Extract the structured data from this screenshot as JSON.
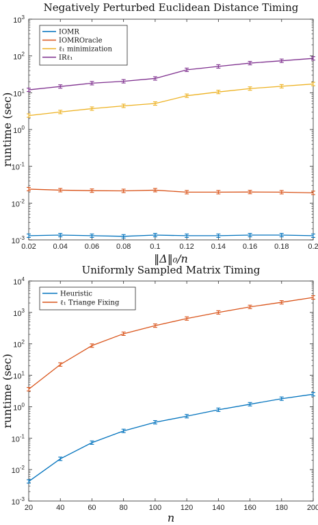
{
  "chart_data": [
    {
      "type": "line",
      "title": "Negatively Perturbed Euclidean Distance Timing",
      "xlabel": "‖Δ‖₀/n",
      "ylabel": "runtime (sec)",
      "yscale": "log",
      "xlim": [
        0.02,
        0.2
      ],
      "ylim": [
        0.001,
        1000
      ],
      "x": [
        0.02,
        0.04,
        0.06,
        0.08,
        0.1,
        0.12,
        0.14,
        0.16,
        0.18,
        0.2
      ],
      "xticks": [
        "0.02",
        "0.04",
        "0.06",
        "0.08",
        "0.1",
        "0.12",
        "0.14",
        "0.16",
        "0.18",
        "0.2"
      ],
      "yticks": [
        {
          "base": "10",
          "exp": "-3"
        },
        {
          "base": "10",
          "exp": "-2"
        },
        {
          "base": "10",
          "exp": "-1"
        },
        {
          "base": "10",
          "exp": "0"
        },
        {
          "base": "10",
          "exp": "1"
        },
        {
          "base": "10",
          "exp": "2"
        },
        {
          "base": "10",
          "exp": "3"
        }
      ],
      "legend_position": "top-left",
      "grid": false,
      "error_bars": true,
      "series": [
        {
          "name": "IOMR",
          "color": "#0072BD",
          "values": [
            0.0013,
            0.00135,
            0.0013,
            0.00125,
            0.00135,
            0.0013,
            0.0013,
            0.00135,
            0.00135,
            0.0013
          ]
        },
        {
          "name": "IOMROracle",
          "color": "#D95319",
          "values": [
            0.024,
            0.0225,
            0.0218,
            0.0215,
            0.0225,
            0.0198,
            0.0198,
            0.02,
            0.0198,
            0.019
          ]
        },
        {
          "name": "ℓ₁ minimization",
          "color": "#EDB120",
          "values": [
            2.4,
            3.0,
            3.7,
            4.4,
            5.1,
            8.3,
            10.5,
            13.0,
            15.0,
            17.3
          ]
        },
        {
          "name": "IRℓ₁",
          "color": "#7E2F8E",
          "values": [
            12.0,
            14.8,
            18.2,
            20.5,
            24.5,
            42.0,
            52.0,
            64.0,
            74.0,
            86.0
          ]
        }
      ]
    },
    {
      "type": "line",
      "title": "Uniformly Sampled Matrix Timing",
      "xlabel": "n",
      "ylabel": "runtime (sec)",
      "yscale": "log",
      "xlim": [
        20,
        200
      ],
      "ylim": [
        0.001,
        10000
      ],
      "x": [
        20,
        40,
        60,
        80,
        100,
        120,
        140,
        160,
        180,
        200
      ],
      "xticks": [
        "20",
        "40",
        "60",
        "80",
        "100",
        "120",
        "140",
        "160",
        "180",
        "200"
      ],
      "yticks": [
        {
          "base": "10",
          "exp": "-3"
        },
        {
          "base": "10",
          "exp": "-2"
        },
        {
          "base": "10",
          "exp": "-1"
        },
        {
          "base": "10",
          "exp": "0"
        },
        {
          "base": "10",
          "exp": "1"
        },
        {
          "base": "10",
          "exp": "2"
        },
        {
          "base": "10",
          "exp": "3"
        },
        {
          "base": "10",
          "exp": "4"
        }
      ],
      "legend_position": "top-left",
      "grid": false,
      "error_bars": true,
      "series": [
        {
          "name": "Heuristic",
          "color": "#0072BD",
          "values": [
            0.0042,
            0.022,
            0.072,
            0.17,
            0.32,
            0.5,
            0.8,
            1.2,
            1.8,
            2.5
          ]
        },
        {
          "name": "ℓ₁ Triange Fixing",
          "color": "#D95319",
          "values": [
            3.6,
            22,
            88,
            210,
            380,
            640,
            1000,
            1500,
            2100,
            3000
          ]
        }
      ]
    }
  ]
}
